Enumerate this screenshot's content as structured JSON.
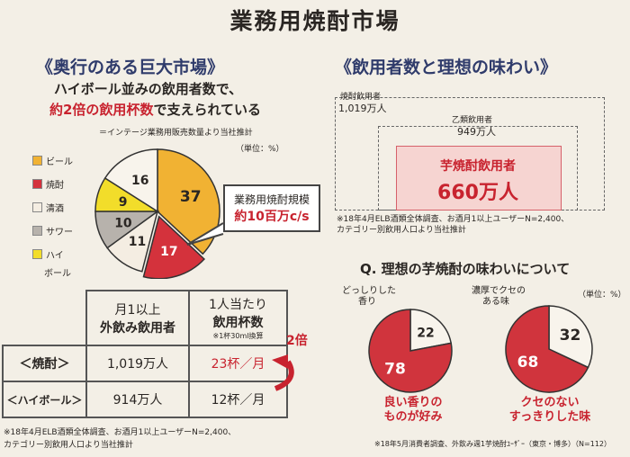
{
  "title": "業務用焼酎市場",
  "left": {
    "heading": "《奥行のある巨大市場》",
    "sub1": "ハイボール並みの飲用者数で、",
    "sub2_red": "約2倍の飲用杯数",
    "sub2_rest": "で支えられている",
    "source": "＝インテージ業務用販売数量より当社推計",
    "unit": "（単位：%）",
    "legend": [
      "ビール",
      "焼酎",
      "清酒",
      "サワー",
      "ハイ",
      "ボール"
    ],
    "callout_title": "業務用焼酎規模",
    "callout_value": "約10百万c/s",
    "table": {
      "h1a": "月1以上",
      "h1b": "外飲み飲用者",
      "h2a": "1人当たり",
      "h2b": "飲用杯数",
      "h2c": "※1杯30ml換算",
      "r1_label": "＜焼酎＞",
      "r1_users": "1,019万人",
      "r1_cups": "23杯／月",
      "r2_label": "＜ハイボール＞",
      "r2_users": "914万人",
      "r2_cups": "12杯／月",
      "ratio": "2倍"
    },
    "note1": "※18年4月ELB酒類全体調査、お酒月1以上ユーザーN=2,400、",
    "note2": "カテゴリー別飲用人口より当社推計"
  },
  "chart_data": [
    {
      "type": "pie",
      "title": "",
      "unit": "%",
      "slices": [
        {
          "label": "ビール",
          "value": 37,
          "color": "#f1b233"
        },
        {
          "label": "焼酎",
          "value": 17,
          "color": "#d4323c"
        },
        {
          "label": "清酒",
          "value": 11,
          "color": "#f4ede2"
        },
        {
          "label": "サワー",
          "value": 10,
          "color": "#b7b2ac"
        },
        {
          "label": "ハイボール",
          "value": 9,
          "color": "#f2dd2a"
        },
        {
          "label": "",
          "value": 16,
          "color": "#f8f4ec"
        }
      ]
    },
    {
      "type": "pie",
      "title": "",
      "unit": "%",
      "slices": [
        {
          "label": "どっしりした香り",
          "value": 22,
          "color": "#f8f4ec"
        },
        {
          "label": "良い香りのものが好み",
          "value": 78,
          "color": "#d0343d"
        }
      ]
    },
    {
      "type": "pie",
      "title": "",
      "unit": "%",
      "slices": [
        {
          "label": "濃厚でクセのある味",
          "value": 32,
          "color": "#f8f4ec"
        },
        {
          "label": "クセのない すっきりした味",
          "value": 68,
          "color": "#d0343d"
        }
      ]
    }
  ],
  "right": {
    "heading": "《飲用者数と理想の味わい》",
    "box1_label": "焼酎飲用者",
    "box1_value": "1,019万人",
    "box2_label": "乙類飲用者",
    "box2_value": "949万人",
    "box3_label": "芋焼酎飲用者",
    "box3_value": "660万人",
    "note1": "※18年4月ELB酒類全体調査、お酒月1以上ユーザーN=2,400、",
    "note2": "カテゴリー別飲用人口より当社推計",
    "q_title": "Q. 理想の芋焼酎の味わいについて",
    "unit": "（単位：%）",
    "p1_top": "どっしりした",
    "p1_top2": "香り",
    "p1_bottom1": "良い香りの",
    "p1_bottom2": "ものが好み",
    "p2_top": "濃厚でクセの",
    "p2_top2": "ある味",
    "p2_bottom1": "クセのない",
    "p2_bottom2": "すっきりした味",
    "note3": "※18年5月消費者調査、外飲み週1芋焼酎ﾕｰｻﾞｰ（東京・博多）（N=112）"
  }
}
